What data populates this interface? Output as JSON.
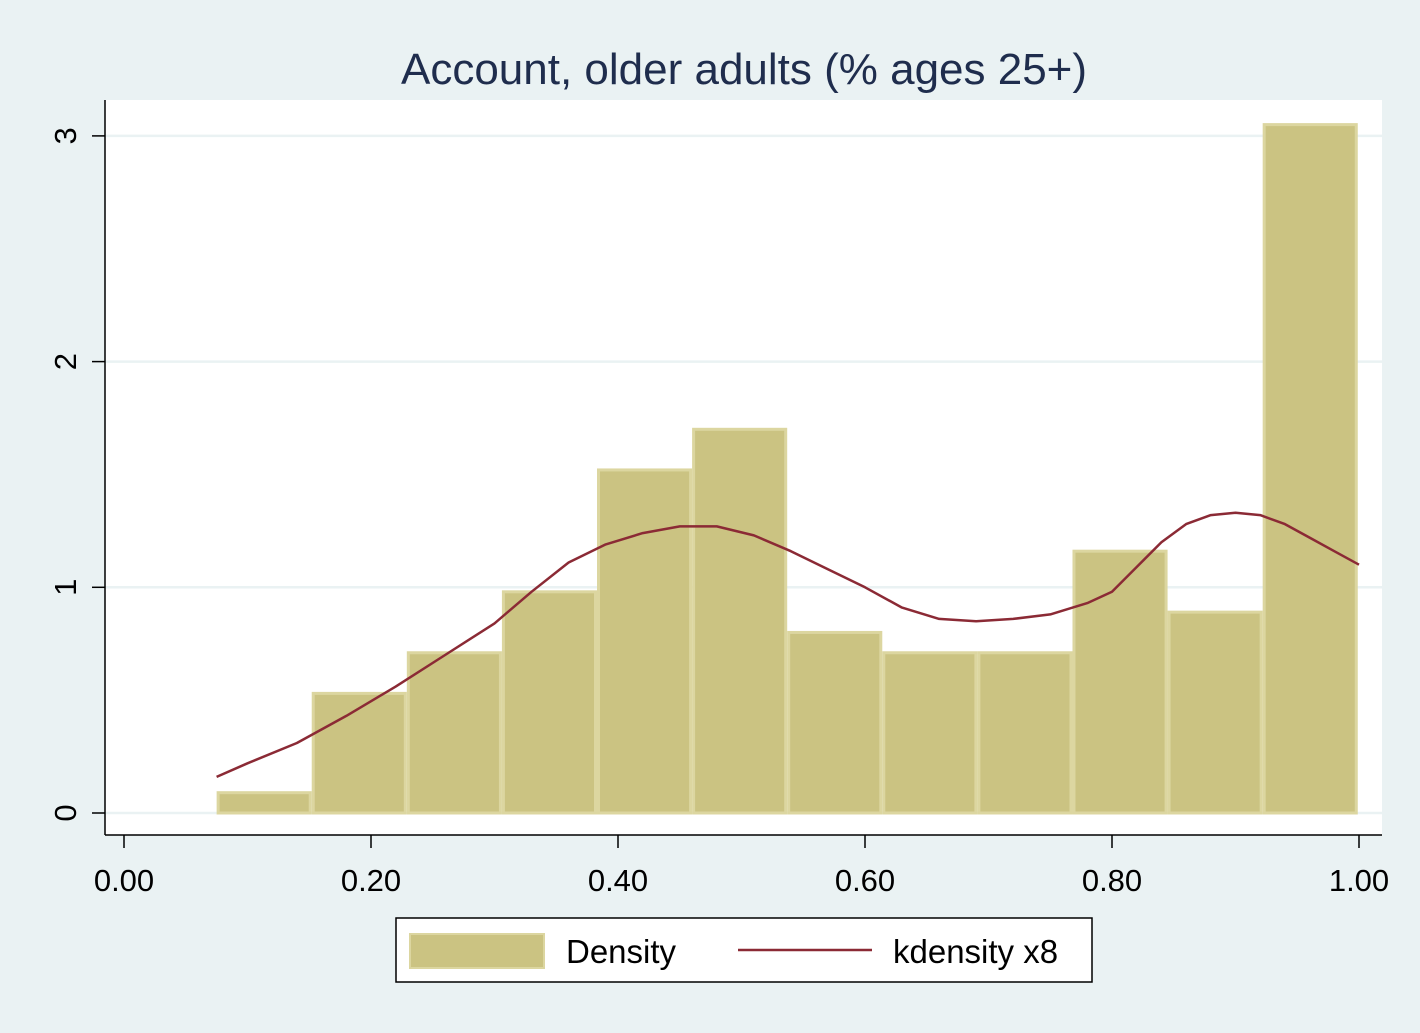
{
  "chart_data": {
    "type": "bar",
    "title": "Account, older adults (% ages 25+)",
    "xlabel": "",
    "ylabel": "",
    "xlim": [
      0.0,
      1.0
    ],
    "ylim": [
      0,
      3.2
    ],
    "x_ticks": [
      {
        "value": 0.0,
        "label": "0.00"
      },
      {
        "value": 0.2,
        "label": "0.20"
      },
      {
        "value": 0.4,
        "label": "0.40"
      },
      {
        "value": 0.6,
        "label": "0.60"
      },
      {
        "value": 0.8,
        "label": "0.80"
      },
      {
        "value": 1.0,
        "label": "1.00"
      }
    ],
    "y_ticks": [
      {
        "value": 0,
        "label": "0"
      },
      {
        "value": 1,
        "label": "1"
      },
      {
        "value": 2,
        "label": "2"
      },
      {
        "value": 3,
        "label": "3"
      }
    ],
    "grid": "horizontal",
    "bin_edges": [
      0.075,
      0.152,
      0.229,
      0.306,
      0.383,
      0.46,
      0.537,
      0.614,
      0.691,
      0.768,
      0.845,
      0.922,
      0.999
    ],
    "series": [
      {
        "name": "Density",
        "kind": "histogram",
        "color": "#cbc382",
        "values": [
          0.09,
          0.53,
          0.71,
          0.98,
          1.52,
          1.7,
          0.8,
          0.71,
          0.71,
          1.16,
          0.89,
          3.05
        ]
      },
      {
        "name": "kdensity x8",
        "kind": "line",
        "color": "#8b2a35",
        "x": [
          0.075,
          0.1,
          0.14,
          0.18,
          0.22,
          0.26,
          0.3,
          0.33,
          0.36,
          0.39,
          0.42,
          0.45,
          0.48,
          0.51,
          0.54,
          0.57,
          0.6,
          0.63,
          0.66,
          0.69,
          0.72,
          0.75,
          0.78,
          0.8,
          0.82,
          0.84,
          0.86,
          0.88,
          0.9,
          0.92,
          0.94,
          0.96,
          0.98,
          1.0
        ],
        "y": [
          0.16,
          0.22,
          0.31,
          0.43,
          0.56,
          0.7,
          0.84,
          0.98,
          1.11,
          1.19,
          1.24,
          1.27,
          1.27,
          1.23,
          1.16,
          1.08,
          1.0,
          0.91,
          0.86,
          0.85,
          0.86,
          0.88,
          0.93,
          0.98,
          1.09,
          1.2,
          1.28,
          1.32,
          1.33,
          1.32,
          1.28,
          1.22,
          1.16,
          1.1
        ]
      }
    ],
    "legend": {
      "position": "bottom-center",
      "entries": [
        {
          "label": "Density",
          "swatch": "box"
        },
        {
          "label": "kdensity x8",
          "swatch": "line"
        }
      ]
    },
    "colors": {
      "background": "#eaf2f3",
      "plot_background": "#ffffff",
      "grid": "#eaf2f3",
      "bar_fill": "#cbc382",
      "bar_edge": "#dcd6a0",
      "line": "#8b2a35",
      "title": "#1f2d4d"
    }
  }
}
